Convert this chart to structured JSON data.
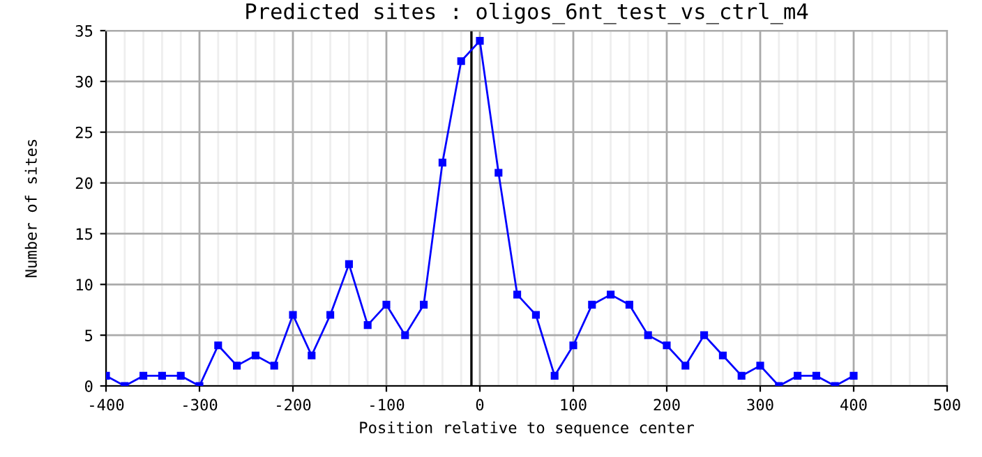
{
  "chart_data": {
    "type": "line",
    "title": "Predicted sites : oligos_6nt_test_vs_ctrl_m4",
    "xlabel": "Position relative to sequence center",
    "ylabel": "Number of sites",
    "x": [
      -400,
      -380,
      -360,
      -340,
      -320,
      -300,
      -280,
      -260,
      -240,
      -220,
      -200,
      -180,
      -160,
      -140,
      -120,
      -100,
      -80,
      -60,
      -40,
      -20,
      0,
      20,
      40,
      60,
      80,
      100,
      120,
      140,
      160,
      180,
      200,
      220,
      240,
      260,
      280,
      300,
      320,
      340,
      360,
      380,
      400
    ],
    "series": [
      {
        "color": "#0000ff",
        "values": [
          1,
          0,
          1,
          1,
          1,
          0,
          4,
          2,
          3,
          2,
          7,
          3,
          7,
          12,
          6,
          8,
          5,
          8,
          22,
          32,
          34,
          21,
          9,
          7,
          1,
          4,
          8,
          9,
          8,
          5,
          4,
          2,
          5,
          3,
          1,
          2,
          0,
          1,
          1,
          0,
          1
        ]
      }
    ],
    "xlim": [
      -400,
      500
    ],
    "ylim": [
      0,
      35
    ],
    "xticks": [
      -400,
      {
        "value": -380,
        "label": null
      },
      {
        "value": -360,
        "label": null
      },
      {
        "value": -340,
        "label": null
      },
      {
        "value": -320,
        "label": null
      },
      -300,
      {
        "value": -280,
        "label": null
      },
      {
        "value": -260,
        "label": null
      },
      {
        "value": -240,
        "label": null
      },
      {
        "value": -220,
        "label": null
      },
      -200,
      {
        "value": -180,
        "label": null
      },
      {
        "value": -160,
        "label": null
      },
      {
        "value": -140,
        "label": null
      },
      {
        "value": -120,
        "label": null
      },
      -100,
      {
        "value": -80,
        "label": null
      },
      {
        "value": -60,
        "label": null
      },
      {
        "value": -40,
        "label": null
      },
      {
        "value": -20,
        "label": null
      },
      0,
      {
        "value": 20,
        "label": null
      },
      {
        "value": 40,
        "label": null
      },
      {
        "value": 60,
        "label": null
      },
      {
        "value": 80,
        "label": null
      },
      100,
      {
        "value": 120,
        "label": null
      },
      {
        "value": 140,
        "label": null
      },
      {
        "value": 160,
        "label": null
      },
      {
        "value": 180,
        "label": null
      },
      200,
      {
        "value": 220,
        "label": null
      },
      {
        "value": 240,
        "label": null
      },
      {
        "value": 260,
        "label": null
      },
      {
        "value": 280,
        "label": null
      },
      300,
      {
        "value": 320,
        "label": null
      },
      {
        "value": 340,
        "label": null
      },
      {
        "value": 360,
        "label": null
      },
      {
        "value": 380,
        "label": null
      },
      400,
      {
        "value": 420,
        "label": null
      },
      {
        "value": 440,
        "label": null
      },
      {
        "value": 460,
        "label": null
      },
      {
        "value": 480,
        "label": null
      },
      500
    ],
    "yticks": [
      0,
      5,
      10,
      15,
      20,
      25,
      30,
      35
    ],
    "ref_lines": [
      {
        "axis": "x",
        "value": -9,
        "color": "#000000"
      }
    ],
    "grid": true,
    "marker": "square",
    "line_style": "solid",
    "legend": false
  }
}
